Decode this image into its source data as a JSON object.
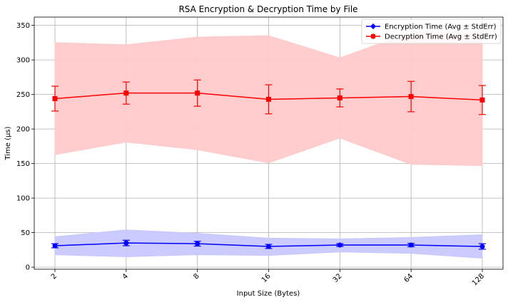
{
  "chart_data": {
    "type": "line",
    "title": "RSA Encryption & Decryption Time by File",
    "xlabel": "Input Size (Bytes)",
    "ylabel": "Time (µs)",
    "categories": [
      "2",
      "4",
      "8",
      "16",
      "32",
      "64",
      "128"
    ],
    "ylim": [
      -3,
      362
    ],
    "yticks": [
      0,
      50,
      100,
      150,
      200,
      250,
      300,
      350
    ],
    "grid": true,
    "legend_position": "top-right",
    "series": [
      {
        "name": "Encryption Time (Avg ± StdErr)",
        "color": "#0000ff",
        "band_color": "#c8c8ff",
        "marker": "circle",
        "values": [
          31,
          35,
          34,
          30,
          32,
          32,
          30
        ],
        "stderr": [
          3,
          4,
          3.5,
          3,
          2,
          2.5,
          4
        ],
        "band_lower": [
          18,
          15,
          18,
          17,
          22,
          20,
          13
        ],
        "band_upper": [
          44,
          54,
          49,
          42,
          41,
          43,
          47
        ]
      },
      {
        "name": "Decryption Time (Avg ± StdErr)",
        "color": "#ff0000",
        "band_color": "#ffcaca",
        "marker": "square",
        "values": [
          244,
          252,
          252,
          243,
          245,
          247,
          242
        ],
        "stderr": [
          18,
          16,
          19,
          21,
          13,
          22,
          21
        ],
        "band_lower": [
          163,
          181,
          170,
          151,
          187,
          149,
          147
        ],
        "band_upper": [
          325,
          322,
          333,
          335,
          303,
          340,
          340
        ]
      }
    ]
  }
}
